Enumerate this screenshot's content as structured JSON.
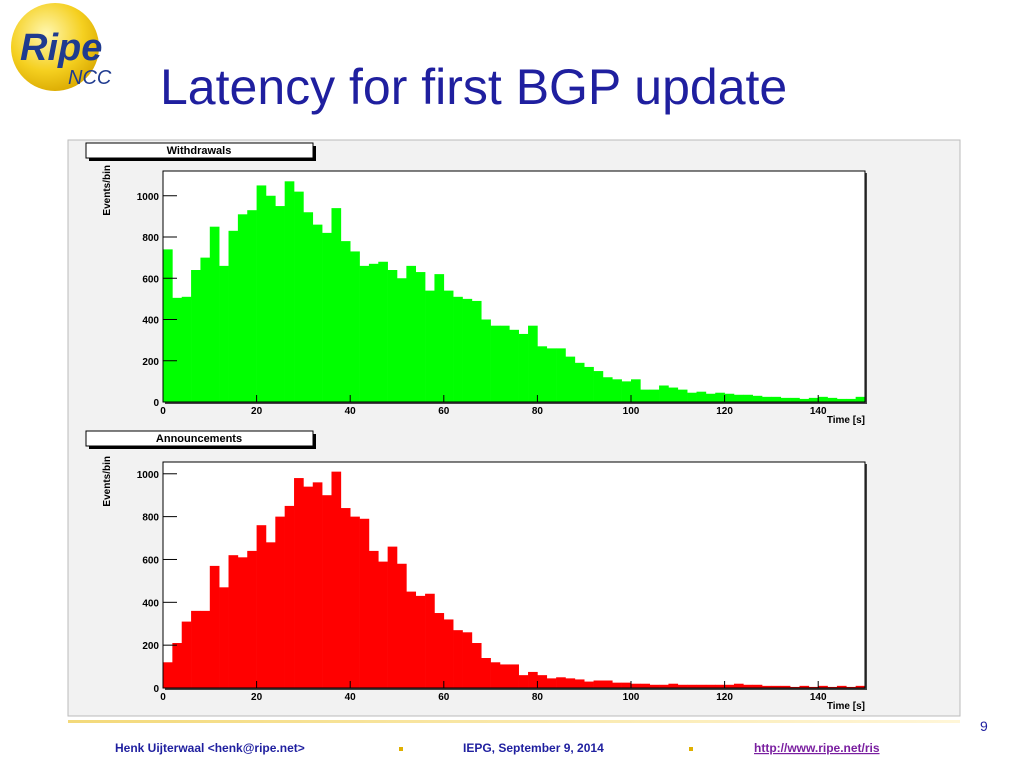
{
  "slide": {
    "title": "Latency for first BGP update",
    "logo": {
      "main": "Ripe",
      "sub": "NCC"
    },
    "page_number": "9",
    "footer": {
      "author": "Henk Uijterwaal <henk@ripe.net>",
      "event": "IEPG, September 9, 2014",
      "url": "http://www.ripe.net/ris"
    }
  },
  "chart_data": [
    {
      "type": "histogram",
      "title": "Withdrawals",
      "ylabel": "Events/bin",
      "xlabel": "Time [s]",
      "color": "#00ff00",
      "bins": [
        0,
        2,
        4,
        6,
        8,
        10,
        12,
        14,
        16,
        18,
        20,
        22,
        24,
        26,
        28,
        30,
        32,
        34,
        36,
        38,
        40,
        42,
        44,
        46,
        48,
        50,
        52,
        54,
        56,
        58,
        60,
        62,
        64,
        66,
        68,
        70,
        72,
        74,
        76,
        78,
        80,
        82,
        84,
        86,
        88,
        90,
        92,
        94,
        96,
        98,
        100,
        102,
        104,
        106,
        108,
        110,
        112,
        114,
        116,
        118,
        120,
        122,
        124,
        126,
        128,
        130,
        132,
        134,
        136,
        138,
        140,
        142,
        144,
        146,
        148,
        150
      ],
      "values": [
        740,
        505,
        510,
        640,
        700,
        850,
        660,
        830,
        910,
        930,
        1050,
        1000,
        950,
        1070,
        1020,
        920,
        860,
        820,
        940,
        780,
        730,
        660,
        670,
        680,
        640,
        600,
        660,
        630,
        540,
        620,
        540,
        510,
        500,
        490,
        400,
        370,
        370,
        350,
        330,
        370,
        270,
        260,
        260,
        220,
        190,
        170,
        150,
        120,
        110,
        100,
        110,
        60,
        60,
        80,
        70,
        60,
        45,
        50,
        40,
        45,
        40,
        35,
        35,
        30,
        25,
        25,
        20,
        20,
        15,
        20,
        25,
        20,
        15,
        15,
        25
      ],
      "xlim": [
        0,
        150
      ],
      "xticks": [
        0,
        20,
        40,
        60,
        80,
        100,
        120,
        140
      ],
      "ylim": [
        0,
        1120
      ],
      "yticks": [
        0,
        200,
        400,
        600,
        800,
        1000
      ]
    },
    {
      "type": "histogram",
      "title": "Announcements",
      "ylabel": "Events/bin",
      "xlabel": "Time [s]",
      "color": "#ff0000",
      "bins": [
        0,
        2,
        4,
        6,
        8,
        10,
        12,
        14,
        16,
        18,
        20,
        22,
        24,
        26,
        28,
        30,
        32,
        34,
        36,
        38,
        40,
        42,
        44,
        46,
        48,
        50,
        52,
        54,
        56,
        58,
        60,
        62,
        64,
        66,
        68,
        70,
        72,
        74,
        76,
        78,
        80,
        82,
        84,
        86,
        88,
        90,
        92,
        94,
        96,
        98,
        100,
        102,
        104,
        106,
        108,
        110,
        112,
        114,
        116,
        118,
        120,
        122,
        124,
        126,
        128,
        130,
        132,
        134,
        136,
        138,
        140,
        142,
        144,
        146,
        148,
        150
      ],
      "values": [
        120,
        210,
        310,
        360,
        360,
        570,
        470,
        620,
        610,
        640,
        760,
        680,
        800,
        850,
        980,
        940,
        960,
        900,
        1010,
        840,
        800,
        790,
        640,
        590,
        660,
        580,
        450,
        430,
        440,
        350,
        320,
        270,
        260,
        210,
        140,
        120,
        110,
        110,
        60,
        75,
        60,
        45,
        50,
        45,
        40,
        30,
        35,
        35,
        25,
        25,
        20,
        20,
        15,
        15,
        20,
        15,
        15,
        15,
        15,
        15,
        15,
        20,
        15,
        15,
        10,
        10,
        10,
        5,
        10,
        5,
        10,
        5,
        10,
        5,
        10
      ],
      "xlim": [
        0,
        150
      ],
      "xticks": [
        0,
        20,
        40,
        60,
        80,
        100,
        120,
        140
      ],
      "ylim": [
        0,
        1055
      ],
      "yticks": [
        0,
        200,
        400,
        600,
        800,
        1000
      ]
    }
  ]
}
